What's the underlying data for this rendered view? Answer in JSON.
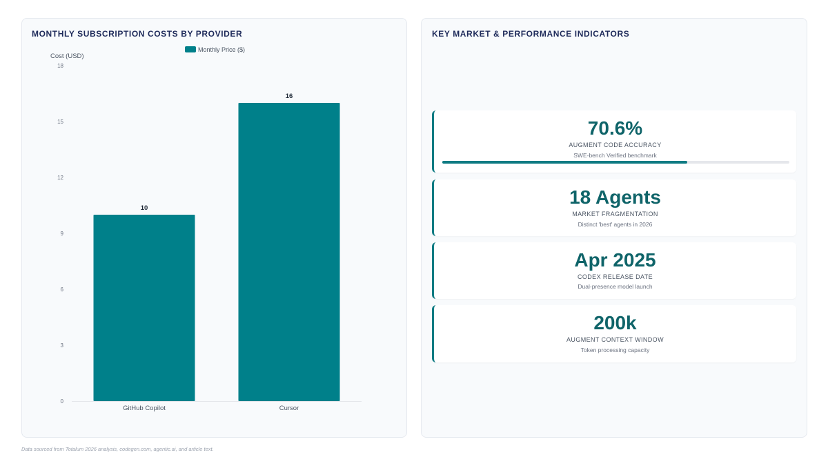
{
  "left_panel": {
    "title": "MONTHLY SUBSCRIPTION COSTS BY PROVIDER"
  },
  "right_panel": {
    "title": "KEY MARKET & PERFORMANCE INDICATORS"
  },
  "chart_data": {
    "type": "bar",
    "categories": [
      "GitHub Copilot",
      "Cursor"
    ],
    "series": [
      {
        "name": "Monthly Price ($)",
        "values": [
          10,
          16
        ],
        "color": "#00808a"
      }
    ],
    "data_labels": [
      "10",
      "16"
    ],
    "ylabel": "Cost (USD)",
    "xlabel": "",
    "ylim": [
      0,
      18
    ],
    "yticks": [
      0,
      3,
      6,
      9,
      12,
      15,
      18
    ],
    "grid": false,
    "legend": "top-center"
  },
  "kpis": [
    {
      "value": "70.6%",
      "label": "AUGMENT CODE ACCURACY",
      "sub": "SWE-bench Verified benchmark",
      "progress": 0.706
    },
    {
      "value": "18 Agents",
      "label": "MARKET FRAGMENTATION",
      "sub": "Distinct 'best' agents in 2026"
    },
    {
      "value": "Apr 2025",
      "label": "CODEX RELEASE DATE",
      "sub": "Dual-presence model launch"
    },
    {
      "value": "200k",
      "label": "AUGMENT CONTEXT WINDOW",
      "sub": "Token processing capacity"
    }
  ],
  "colors": {
    "accent": "#0f7b83",
    "bar": "#00808a",
    "title": "#1e2a5a"
  },
  "footnote": "Data sourced from Totalum 2026 analysis, codegen.com, agentic.ai, and article text."
}
